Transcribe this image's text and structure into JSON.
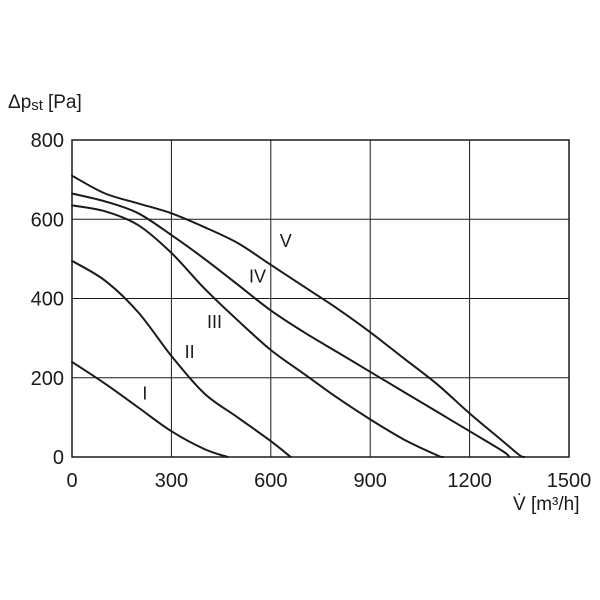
{
  "chart_data": {
    "type": "line",
    "title": "",
    "ylabel": "Δp",
    "ylabel_sub": "st",
    "ylabel_unit": "[Pa]",
    "xlabel": "V̇ [m³/h]",
    "xlim": [
      0,
      1500
    ],
    "ylim": [
      0,
      800
    ],
    "xticks": [
      "0",
      "300",
      "600",
      "900",
      "1200",
      "1500"
    ],
    "yticks": [
      "0",
      "200",
      "400",
      "600",
      "800"
    ],
    "xtick_values": [
      0,
      300,
      600,
      900,
      1200,
      1500
    ],
    "ytick_values": [
      0,
      200,
      400,
      600,
      800
    ],
    "grid": true,
    "legend": "none",
    "series": [
      {
        "name": "I",
        "x": [
          0,
          100,
          200,
          300,
          400,
          470
        ],
        "y": [
          240,
          185,
          125,
          65,
          20,
          0
        ]
      },
      {
        "name": "II",
        "x": [
          0,
          100,
          200,
          300,
          400,
          500,
          600,
          660
        ],
        "y": [
          495,
          445,
          365,
          255,
          160,
          100,
          40,
          0
        ]
      },
      {
        "name": "III",
        "x": [
          0,
          100,
          200,
          300,
          400,
          500,
          600,
          700,
          800,
          900,
          1000,
          1100,
          1120
        ],
        "y": [
          635,
          620,
          585,
          515,
          425,
          345,
          270,
          210,
          150,
          95,
          45,
          5,
          0
        ]
      },
      {
        "name": "IV",
        "x": [
          0,
          100,
          200,
          300,
          400,
          500,
          600,
          700,
          800,
          900,
          1000,
          1100,
          1200,
          1300,
          1320
        ],
        "y": [
          665,
          645,
          615,
          560,
          500,
          435,
          370,
          315,
          265,
          215,
          165,
          115,
          65,
          15,
          0
        ]
      },
      {
        "name": "V",
        "x": [
          0,
          100,
          200,
          300,
          400,
          500,
          600,
          700,
          800,
          900,
          1000,
          1100,
          1200,
          1300,
          1350,
          1365
        ],
        "y": [
          710,
          665,
          640,
          615,
          580,
          540,
          485,
          430,
          375,
          315,
          250,
          185,
          110,
          40,
          5,
          0
        ]
      }
    ],
    "series_labels": [
      {
        "text": "I",
        "x": 220,
        "y": 145
      },
      {
        "text": "II",
        "x": 355,
        "y": 250
      },
      {
        "text": "III",
        "x": 430,
        "y": 325
      },
      {
        "text": "IV",
        "x": 560,
        "y": 440
      },
      {
        "text": "V",
        "x": 645,
        "y": 530
      }
    ]
  }
}
